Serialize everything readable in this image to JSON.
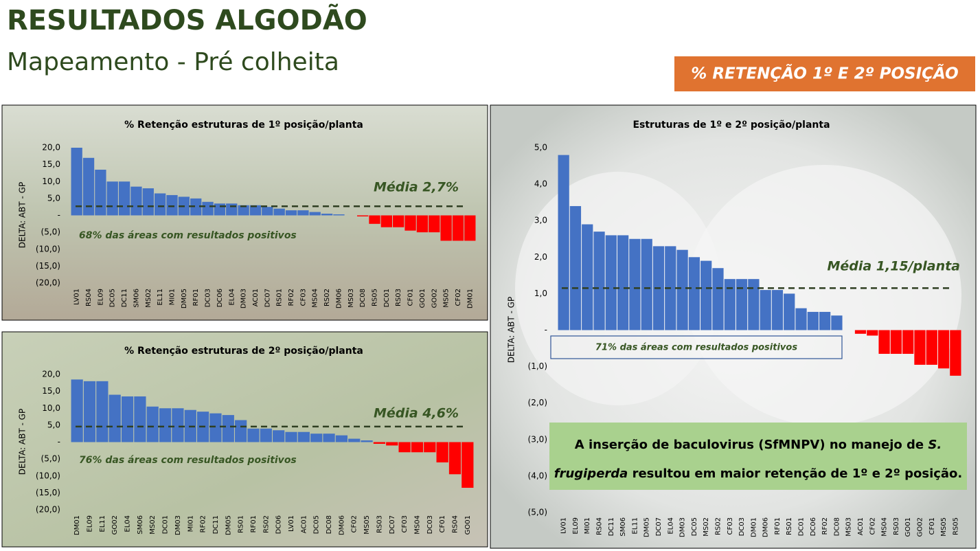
{
  "header": {
    "title": "RESULTADOS ALGODÃO",
    "subtitle": "Mapeamento - Pré colheita",
    "badge": "% RETENÇÃO 1º E 2º POSIÇÃO"
  },
  "callout": {
    "lines": [
      [
        "A inserção de baculovirus (SfMNPV) no manejo de ",
        "S."
      ],
      [
        "frugiperda",
        " resultou em maior retenção de 1º e 2º posição."
      ]
    ]
  },
  "chart_data": [
    {
      "type": "bar",
      "title": "% Retenção estruturas de 1º posição/planta",
      "y_label": "DELTA: ABT - GP",
      "categories": [
        "LV01",
        "RS04",
        "EL09",
        "DC05",
        "DC11",
        "SM06",
        "MS02",
        "EL11",
        "MI01",
        "DM05",
        "RF01",
        "DC03",
        "DC06",
        "EL04",
        "DM03",
        "AC01",
        "DC07",
        "RS01",
        "RF02",
        "CF03",
        "MS04",
        "RS02",
        "DM06",
        "MS03",
        "DC08",
        "RS05",
        "DC01",
        "RS03",
        "CF01",
        "GO01",
        "GO02",
        "MS05",
        "CF02",
        "DM01"
      ],
      "values": [
        20,
        17,
        13.5,
        10,
        10,
        8.5,
        8,
        6.5,
        6,
        5.5,
        5,
        4,
        3.5,
        3.5,
        3,
        3,
        2.5,
        2,
        1.5,
        1.5,
        1,
        0.5,
        0.3,
        0,
        -0.3,
        -2.5,
        -3.5,
        -3.5,
        -4.5,
        -5,
        -5,
        -7.5,
        -7.5,
        -7.5
      ],
      "colors": {
        "positive": "#4472c4",
        "negative": "#ff0000"
      },
      "ylim": [
        -20,
        20
      ],
      "yticks": [
        {
          "value": 20,
          "label": "20,0"
        },
        {
          "value": 15,
          "label": "15,0"
        },
        {
          "value": 10,
          "label": "10,0"
        },
        {
          "value": 5,
          "label": "5,0"
        },
        {
          "value": 0,
          "label": "-"
        },
        {
          "value": -5,
          "label": "(5,0)"
        },
        {
          "value": -10,
          "label": "(10,0)"
        },
        {
          "value": -15,
          "label": "(15,0)"
        },
        {
          "value": -20,
          "label": "(20,0)"
        }
      ],
      "mean_line": {
        "value": 2.7,
        "label": "Média 2,7%"
      },
      "note": "68% das áreas com resultados positivos"
    },
    {
      "type": "bar",
      "title": "% Retenção estruturas de 2º posição/planta",
      "y_label": "DELTA: ABT - GP",
      "categories": [
        "DM01",
        "EL09",
        "EL11",
        "GO02",
        "EL04",
        "SM06",
        "MS02",
        "DC01",
        "DM03",
        "MI01",
        "RF02",
        "DC11",
        "DM05",
        "RS01",
        "RF01",
        "RS02",
        "DC06",
        "LV01",
        "AC01",
        "DC05",
        "DC08",
        "DM06",
        "CF02",
        "MS05",
        "RS03",
        "DC07",
        "CF03",
        "MS04",
        "DC03",
        "CF01",
        "RS04",
        "GO01"
      ],
      "values": [
        18.5,
        18,
        18,
        14,
        13.5,
        13.5,
        10.5,
        10,
        10,
        9.5,
        9,
        8.5,
        8,
        6.5,
        4,
        4,
        3.5,
        3,
        3,
        2.5,
        2.5,
        2,
        1,
        0.5,
        -0.5,
        -1,
        -3,
        -3,
        -3,
        -6,
        -9.5,
        -13.5
      ],
      "colors": {
        "positive": "#4472c4",
        "negative": "#ff0000"
      },
      "ylim": [
        -20,
        20
      ],
      "yticks": [
        {
          "value": 20,
          "label": "20,0"
        },
        {
          "value": 15,
          "label": "15,0"
        },
        {
          "value": 10,
          "label": "10,0"
        },
        {
          "value": 5,
          "label": "5,0"
        },
        {
          "value": 0,
          "label": "-"
        },
        {
          "value": -5,
          "label": "(5,0)"
        },
        {
          "value": -10,
          "label": "(10,0)"
        },
        {
          "value": -15,
          "label": "(15,0)"
        },
        {
          "value": -20,
          "label": "(20,0)"
        }
      ],
      "mean_line": {
        "value": 4.6,
        "label": "Média 4,6%"
      },
      "note": "76% das áreas com resultados positivos"
    },
    {
      "type": "bar",
      "title": "Estruturas de 1º e 2º posição/planta",
      "y_label": "DELTA: ABT - GP",
      "categories": [
        "LV01",
        "EL09",
        "MI01",
        "RS04",
        "DC11",
        "SM06",
        "EL11",
        "DM05",
        "DC07",
        "EL04",
        "DM03",
        "DC05",
        "MS02",
        "RS02",
        "CF03",
        "DC03",
        "DM01",
        "DM06",
        "RF01",
        "RS01",
        "DC01",
        "DC06",
        "RF02",
        "DC08",
        "MS03",
        "AC01",
        "CF02",
        "MS04",
        "RS03",
        "GO01",
        "GO02",
        "CF01",
        "MS05",
        "RS05"
      ],
      "values": [
        4.8,
        3.4,
        2.9,
        2.7,
        2.6,
        2.6,
        2.5,
        2.5,
        2.3,
        2.3,
        2.2,
        2.0,
        1.9,
        1.7,
        1.4,
        1.4,
        1.4,
        1.1,
        1.1,
        1.0,
        0.6,
        0.5,
        0.5,
        0.4,
        0,
        -0.1,
        -0.15,
        -0.65,
        -0.65,
        -0.65,
        -0.95,
        -0.95,
        -1.05,
        -1.25
      ],
      "colors": {
        "positive": "#4472c4",
        "negative": "#ff0000"
      },
      "ylim": [
        -5,
        5
      ],
      "yticks": [
        {
          "value": 5,
          "label": "5,0"
        },
        {
          "value": 4,
          "label": "4,0"
        },
        {
          "value": 3,
          "label": "3,0"
        },
        {
          "value": 2,
          "label": "2,0"
        },
        {
          "value": 1,
          "label": "1,0"
        },
        {
          "value": 0,
          "label": "-"
        },
        {
          "value": -1,
          "label": "(1,0)"
        },
        {
          "value": -2,
          "label": "(2,0)"
        },
        {
          "value": -3,
          "label": "(3,0)"
        },
        {
          "value": -4,
          "label": "(4,0)"
        },
        {
          "value": -5,
          "label": "(5,0)"
        }
      ],
      "mean_line": {
        "value": 1.15,
        "label": "Média 1,15/planta"
      },
      "note": "71% das áreas com resultados positivos"
    }
  ]
}
